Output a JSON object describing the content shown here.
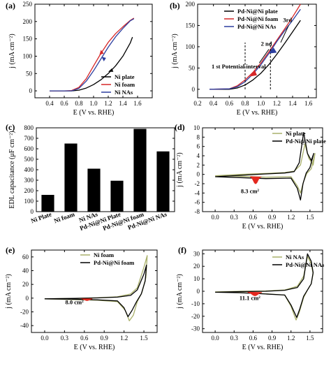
{
  "chart_data": [
    {
      "panel": "(a)",
      "type": "line",
      "xlabel": "E (V vs. RHE)",
      "ylabel": "j (mA cm⁻²)",
      "xlim": [
        0.2,
        1.8
      ],
      "ylim": [
        -20,
        250
      ],
      "xticks": [
        "0.4",
        "0.6",
        "0.8",
        "1.0",
        "1.2",
        "1.4",
        "1.6"
      ],
      "yticks": [
        "0",
        "50",
        "100",
        "150",
        "200",
        "250"
      ],
      "series": [
        {
          "name": "Ni plate",
          "color": "#000000",
          "x": [
            0.4,
            0.6,
            0.7,
            0.8,
            0.9,
            1.0,
            1.1,
            1.2,
            1.3,
            1.4,
            1.5,
            1.53
          ],
          "y": [
            0,
            0,
            0,
            2,
            8,
            18,
            32,
            50,
            72,
            100,
            138,
            155
          ]
        },
        {
          "name": "Ni foam",
          "color": "#d62728",
          "x": [
            0.4,
            0.6,
            0.7,
            0.8,
            0.9,
            1.0,
            1.1,
            1.2,
            1.3,
            1.4,
            1.5,
            1.55
          ],
          "y": [
            0,
            0,
            1,
            10,
            35,
            72,
            108,
            140,
            165,
            185,
            203,
            210
          ]
        },
        {
          "name": "Ni NAs",
          "color": "#2c3e9f",
          "x": [
            0.4,
            0.6,
            0.7,
            0.8,
            0.9,
            1.0,
            1.1,
            1.2,
            1.3,
            1.4,
            1.5,
            1.55
          ],
          "y": [
            0,
            0,
            0,
            7,
            28,
            58,
            92,
            126,
            156,
            180,
            202,
            208
          ]
        }
      ]
    },
    {
      "panel": "(b)",
      "type": "line",
      "xlabel": "E (V vs. RHE)",
      "ylabel": "j (mA cm⁻²)",
      "xlim": [
        0.2,
        1.7
      ],
      "ylim": [
        -20,
        200
      ],
      "xticks": [
        "0.2",
        "0.4",
        "0.6",
        "0.8",
        "1.0",
        "1.2",
        "1.4",
        "1.6"
      ],
      "yticks": [
        "0",
        "50",
        "100",
        "150",
        "200"
      ],
      "annotations": [
        "1 st  Potential interval",
        "2 nd",
        "3rd"
      ],
      "series": [
        {
          "name": "Pd-Ni@Ni plate",
          "color": "#000000",
          "x": [
            0.35,
            0.6,
            0.7,
            0.8,
            0.9,
            1.0,
            1.1,
            1.2,
            1.3,
            1.4,
            1.5
          ],
          "y": [
            0,
            0,
            3,
            10,
            22,
            38,
            58,
            82,
            108,
            135,
            162
          ]
        },
        {
          "name": "Pd-Ni@Ni foam",
          "color": "#d62728",
          "x": [
            0.35,
            0.6,
            0.7,
            0.8,
            0.9,
            1.0,
            1.1,
            1.2,
            1.3,
            1.4,
            1.5
          ],
          "y": [
            0,
            1,
            8,
            22,
            40,
            62,
            88,
            115,
            142,
            170,
            200
          ]
        },
        {
          "name": "Pd-Ni@Ni NAs",
          "color": "#2c3e9f",
          "x": [
            0.35,
            0.6,
            0.7,
            0.8,
            0.9,
            1.0,
            1.1,
            1.2,
            1.3,
            1.4,
            1.5
          ],
          "y": [
            0,
            1,
            6,
            18,
            36,
            58,
            84,
            112,
            138,
            162,
            188
          ]
        }
      ]
    },
    {
      "panel": "(c)",
      "type": "bar",
      "ylabel": "EDL capacitance (μF cm⁻²)",
      "ylim": [
        0,
        800
      ],
      "yticks": [
        "0",
        "100",
        "200",
        "300",
        "400",
        "500",
        "600",
        "700",
        "800"
      ],
      "categories": [
        "Ni Plate",
        "Ni foam",
        "Ni NAs",
        "Pd-Ni@Ni Plate",
        "Pd-Ni@Ni foam",
        "Pd-Ni@Ni NAs"
      ],
      "values": [
        160,
        650,
        410,
        295,
        790,
        575
      ]
    },
    {
      "panel": "(d)",
      "type": "line",
      "xlabel": "E (V vs. RHE)",
      "ylabel": "j (mA cm⁻²)",
      "xlim": [
        -0.2,
        1.7
      ],
      "ylim": [
        -8,
        10
      ],
      "xticks": [
        "0.0",
        "0.3",
        "0.6",
        "0.9",
        "1.2",
        "1.5"
      ],
      "yticks": [
        "-8",
        "-6",
        "-4",
        "-2",
        "0",
        "2",
        "4",
        "6",
        "8",
        "10"
      ],
      "annotation": "8.3 cm²",
      "series": [
        {
          "name": "Ni plate",
          "color": "#a9b06a",
          "x": [
            0.0,
            0.4,
            0.8,
            1.1,
            1.25,
            1.35,
            1.42,
            1.48,
            1.55,
            1.58,
            1.52,
            1.45,
            1.4,
            1.35,
            1.3,
            1.2,
            0.8,
            0.4,
            0.0
          ],
          "y": [
            -0.3,
            0,
            0.2,
            0.4,
            0.7,
            2.0,
            6.5,
            3.5,
            2.0,
            4.5,
            1.2,
            0.2,
            -1.5,
            -4.0,
            -2.5,
            -0.5,
            -0.6,
            -0.4,
            -0.3
          ]
        },
        {
          "name": "Pd-Ni@Ni plate",
          "color": "#000000",
          "x": [
            0.0,
            0.4,
            0.8,
            1.1,
            1.25,
            1.33,
            1.4,
            1.46,
            1.52,
            1.56,
            1.5,
            1.44,
            1.39,
            1.35,
            1.3,
            1.2,
            0.8,
            0.4,
            0.0
          ],
          "y": [
            -0.5,
            -0.2,
            0.1,
            0.3,
            0.6,
            2.5,
            9.0,
            4.5,
            3.0,
            4.5,
            1.5,
            0.3,
            -2.0,
            -5.5,
            -3.0,
            -0.8,
            -0.9,
            -0.7,
            -0.5
          ]
        }
      ]
    },
    {
      "panel": "(e)",
      "type": "line",
      "xlabel": "E (V vs. RHE)",
      "ylabel": "j (mA cm⁻²)",
      "xlim": [
        -0.2,
        1.7
      ],
      "ylim": [
        -50,
        70
      ],
      "xticks": [
        "0.0",
        "0.3",
        "0.6",
        "0.9",
        "1.2",
        "1.5"
      ],
      "yticks": [
        "-40",
        "-20",
        "0",
        "20",
        "40",
        "60"
      ],
      "annotation": "8.0 cm²",
      "series": [
        {
          "name": "Ni foam",
          "color": "#a9b06a",
          "x": [
            0.0,
            0.4,
            0.8,
            1.1,
            1.3,
            1.4,
            1.5,
            1.55,
            1.53,
            1.47,
            1.4,
            1.34,
            1.28,
            1.22,
            1.1,
            0.8,
            0.4,
            0.0
          ],
          "y": [
            -1,
            -0.5,
            0.5,
            2,
            6,
            15,
            45,
            62,
            30,
            8,
            -5,
            -25,
            -33,
            -18,
            -5,
            -3,
            -2,
            -1
          ]
        },
        {
          "name": "Pd-Ni@Ni foam",
          "color": "#000000",
          "x": [
            0.0,
            0.4,
            0.8,
            1.1,
            1.3,
            1.4,
            1.5,
            1.54,
            1.52,
            1.46,
            1.39,
            1.32,
            1.26,
            1.2,
            1.1,
            0.8,
            0.4,
            0.0
          ],
          "y": [
            -1,
            -0.5,
            0.3,
            1.5,
            4,
            12,
            35,
            48,
            25,
            6,
            -5,
            -18,
            -27,
            -14,
            -4,
            -2.5,
            -1.5,
            -1
          ]
        }
      ]
    },
    {
      "panel": "(f)",
      "type": "line",
      "xlabel": "E (V vs. RHE)",
      "ylabel": "j (mA cm⁻²)",
      "xlim": [
        -0.2,
        1.7
      ],
      "ylim": [
        -33,
        33
      ],
      "xticks": [
        "0.0",
        "0.3",
        "0.6",
        "0.9",
        "1.2",
        "1.5"
      ],
      "yticks": [
        "-30",
        "-20",
        "-10",
        "0",
        "10",
        "20",
        "30"
      ],
      "annotation": "11.1 cm²",
      "series": [
        {
          "name": "Ni NAs",
          "color": "#a9b06a",
          "x": [
            0.0,
            0.4,
            0.8,
            1.1,
            1.3,
            1.4,
            1.46,
            1.52,
            1.55,
            1.52,
            1.46,
            1.4,
            1.33,
            1.28,
            1.2,
            1.1,
            0.8,
            0.4,
            0.0
          ],
          "y": [
            -0.5,
            0,
            0.3,
            1,
            4,
            12,
            28,
            22,
            14,
            6,
            1,
            -5,
            -17,
            -23,
            -12,
            -3,
            -2,
            -1,
            -0.5
          ]
        },
        {
          "name": "Pd-Ni@Ni NAs",
          "color": "#000000",
          "x": [
            0.0,
            0.4,
            0.8,
            1.1,
            1.3,
            1.4,
            1.46,
            1.52,
            1.55,
            1.52,
            1.46,
            1.4,
            1.34,
            1.29,
            1.2,
            1.1,
            0.8,
            0.4,
            0.0
          ],
          "y": [
            -0.8,
            -0.3,
            0,
            0.8,
            3,
            10,
            30,
            24,
            15,
            6,
            1,
            -4,
            -14,
            -21,
            -11,
            -3,
            -2.2,
            -1.2,
            -0.8
          ]
        }
      ]
    }
  ]
}
